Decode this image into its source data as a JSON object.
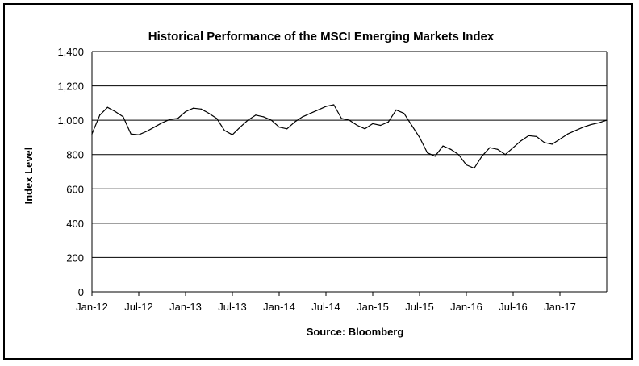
{
  "chart_data": {
    "type": "line",
    "title": "Historical Performance of the MSCI Emerging Markets Index",
    "xlabel": "Source:  Bloomberg",
    "ylabel": "Index Level",
    "ylim": [
      0,
      1400
    ],
    "yticks": [
      0,
      200,
      400,
      600,
      800,
      1000,
      1200,
      1400
    ],
    "ytick_labels": [
      "0",
      "200",
      "400",
      "600",
      "800",
      "1,000",
      "1,200",
      "1,400"
    ],
    "xlim": [
      "2012-01",
      "2017-07"
    ],
    "xticks": [
      "2012-01",
      "2012-07",
      "2013-01",
      "2013-07",
      "2014-01",
      "2014-07",
      "2015-01",
      "2015-07",
      "2016-01",
      "2016-07",
      "2017-01"
    ],
    "xtick_labels": [
      "Jan-12",
      "Jul-12",
      "Jan-13",
      "Jul-13",
      "Jan-14",
      "Jul-14",
      "Jan-15",
      "Jul-15",
      "Jan-16",
      "Jul-16",
      "Jan-17"
    ],
    "grid": "horizontal",
    "series": [
      {
        "color": "#000000",
        "x": [
          "2012-01",
          "2012-02",
          "2012-03",
          "2012-04",
          "2012-05",
          "2012-06",
          "2012-07",
          "2012-08",
          "2012-09",
          "2012-10",
          "2012-11",
          "2012-12",
          "2013-01",
          "2013-02",
          "2013-03",
          "2013-04",
          "2013-05",
          "2013-06",
          "2013-07",
          "2013-08",
          "2013-09",
          "2013-10",
          "2013-11",
          "2013-12",
          "2014-01",
          "2014-02",
          "2014-03",
          "2014-04",
          "2014-05",
          "2014-06",
          "2014-07",
          "2014-08",
          "2014-09",
          "2014-10",
          "2014-11",
          "2014-12",
          "2015-01",
          "2015-02",
          "2015-03",
          "2015-04",
          "2015-05",
          "2015-06",
          "2015-07",
          "2015-08",
          "2015-09",
          "2015-10",
          "2015-11",
          "2015-12",
          "2016-01",
          "2016-02",
          "2016-03",
          "2016-04",
          "2016-05",
          "2016-06",
          "2016-07",
          "2016-08",
          "2016-09",
          "2016-10",
          "2016-11",
          "2016-12",
          "2017-01",
          "2017-02",
          "2017-03",
          "2017-04",
          "2017-05",
          "2017-06",
          "2017-07"
        ],
        "values": [
          920,
          1030,
          1075,
          1050,
          1020,
          920,
          915,
          935,
          960,
          985,
          1005,
          1010,
          1050,
          1070,
          1065,
          1040,
          1010,
          940,
          915,
          960,
          1000,
          1030,
          1020,
          1000,
          960,
          950,
          990,
          1020,
          1040,
          1060,
          1080,
          1090,
          1010,
          1000,
          970,
          950,
          980,
          970,
          990,
          1060,
          1040,
          970,
          900,
          810,
          790,
          850,
          830,
          800,
          740,
          720,
          790,
          840,
          830,
          800,
          840,
          880,
          910,
          905,
          870,
          860,
          890,
          920,
          940,
          960,
          975,
          985,
          1000
        ]
      }
    ]
  }
}
